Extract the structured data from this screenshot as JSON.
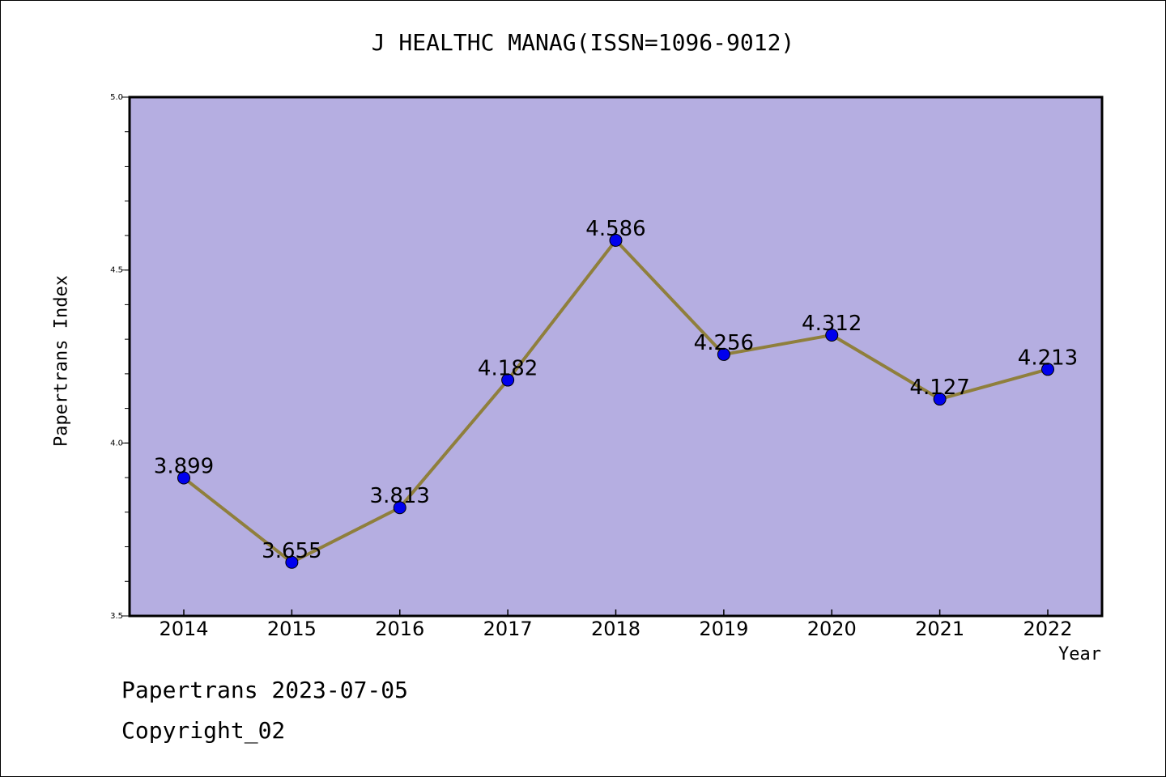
{
  "chart_data": {
    "type": "line",
    "title": "J HEALTHC MANAG(ISSN=1096-9012)",
    "xlabel": "Year",
    "ylabel": "Papertrans Index",
    "x": [
      "2014",
      "2015",
      "2016",
      "2017",
      "2018",
      "2019",
      "2020",
      "2021",
      "2022"
    ],
    "values": [
      3.899,
      3.655,
      3.813,
      4.182,
      4.586,
      4.256,
      4.312,
      4.127,
      4.213
    ],
    "data_labels": [
      "3.899",
      "3.655",
      "3.813",
      "4.182",
      "4.586",
      "4.256",
      "4.312",
      "4.127",
      "4.213"
    ],
    "ylim": [
      3.5,
      5.0
    ],
    "yticks": [
      "3.5",
      "4.0",
      "4.5",
      "5.0"
    ],
    "grid": false,
    "colors": {
      "plot_background": "#b5aee1",
      "line": "#8f7f3c",
      "marker": "#0000ee"
    }
  },
  "footer": {
    "date_text": "Papertrans 2023-07-05",
    "copyright_text": "Copyright_02"
  }
}
